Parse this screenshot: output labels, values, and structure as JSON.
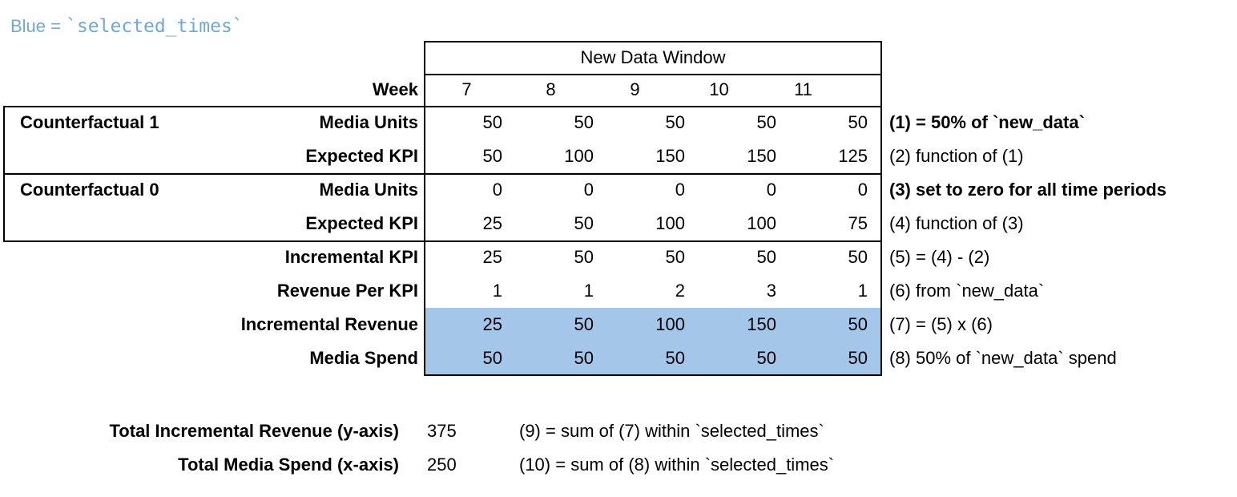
{
  "legend": {
    "prefix": "Blue = ",
    "code": "`selected_times`"
  },
  "colors": {
    "blue_text": "#6fa8dc",
    "blue_fill": "#a4c6e9",
    "border_color": "#000000"
  },
  "table": {
    "window_header": "New Data Window",
    "week_label": "Week",
    "weeks": [
      "7",
      "8",
      "9",
      "10",
      "11"
    ],
    "groups": [
      {
        "name": "Counterfactual 1"
      },
      {
        "name": "Counterfactual 0"
      }
    ],
    "rows": [
      {
        "label": "Media Units",
        "values": [
          "50",
          "50",
          "50",
          "50",
          "50"
        ],
        "annotation": "(1) = 50% of `new_data`",
        "annotation_bold": true,
        "highlight": false
      },
      {
        "label": "Expected KPI",
        "values": [
          "50",
          "100",
          "150",
          "150",
          "125"
        ],
        "annotation": "(2) function of (1)",
        "annotation_bold": false,
        "highlight": false
      },
      {
        "label": "Media Units",
        "values": [
          "0",
          "0",
          "0",
          "0",
          "0"
        ],
        "annotation": "(3) set to zero for all time periods",
        "annotation_bold": true,
        "highlight": false
      },
      {
        "label": "Expected KPI",
        "values": [
          "25",
          "50",
          "100",
          "100",
          "75"
        ],
        "annotation": "(4) function of (3)",
        "annotation_bold": false,
        "highlight": false
      },
      {
        "label": "Incremental KPI",
        "values": [
          "25",
          "50",
          "50",
          "50",
          "50"
        ],
        "annotation": "(5) = (4) - (2)",
        "annotation_bold": false,
        "highlight": false
      },
      {
        "label": "Revenue Per KPI",
        "values": [
          "1",
          "1",
          "2",
          "3",
          "1"
        ],
        "annotation": "(6) from `new_data`",
        "annotation_bold": false,
        "highlight": false
      },
      {
        "label": "Incremental Revenue",
        "values": [
          "25",
          "50",
          "100",
          "150",
          "50"
        ],
        "annotation": "(7) = (5) x (6)",
        "annotation_bold": false,
        "highlight": true
      },
      {
        "label": "Media Spend",
        "values": [
          "50",
          "50",
          "50",
          "50",
          "50"
        ],
        "annotation": "(8) 50% of `new_data` spend",
        "annotation_bold": false,
        "highlight": true
      }
    ]
  },
  "totals": [
    {
      "label": "Total Incremental Revenue (y-axis)",
      "value": "375",
      "annotation": "(9) = sum of (7) within `selected_times`"
    },
    {
      "label": "Total Media Spend (x-axis)",
      "value": "250",
      "annotation": "(10) = sum of (8) within `selected_times`"
    }
  ]
}
